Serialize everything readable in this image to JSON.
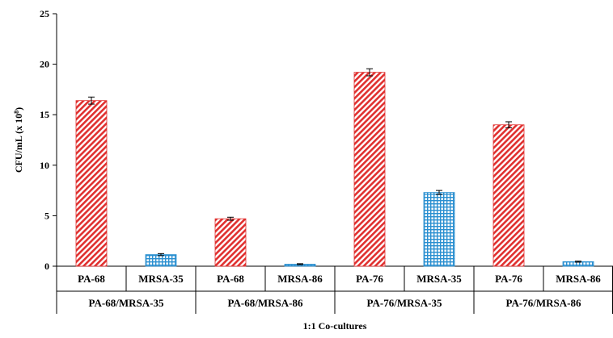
{
  "chart_data": {
    "type": "bar",
    "xlabel": "1:1 Co-cultures",
    "ylabel": "CFU/mL (x 10⁸)",
    "ylim": [
      0,
      25
    ],
    "yticks": [
      0,
      5,
      10,
      15,
      20,
      25
    ],
    "grid": false,
    "groups": [
      {
        "label": "PA-68/MRSA-35",
        "bars": [
          {
            "category": "PA-68",
            "value": 16.4,
            "error": 0.35,
            "series": "PA"
          },
          {
            "category": "MRSA-35",
            "value": 1.15,
            "error": 0.1,
            "series": "MRSA"
          }
        ]
      },
      {
        "label": "PA-68/MRSA-86",
        "bars": [
          {
            "category": "PA-68",
            "value": 4.7,
            "error": 0.15,
            "series": "PA"
          },
          {
            "category": "MRSA-86",
            "value": 0.2,
            "error": 0.05,
            "series": "MRSA"
          }
        ]
      },
      {
        "label": "PA-76/MRSA-35",
        "bars": [
          {
            "category": "PA-76",
            "value": 19.2,
            "error": 0.35,
            "series": "PA"
          },
          {
            "category": "MRSA-35",
            "value": 7.3,
            "error": 0.2,
            "series": "MRSA"
          }
        ]
      },
      {
        "label": "PA-76/MRSA-86",
        "bars": [
          {
            "category": "PA-76",
            "value": 14.0,
            "error": 0.3,
            "series": "PA"
          },
          {
            "category": "MRSA-86",
            "value": 0.45,
            "error": 0.05,
            "series": "MRSA"
          }
        ]
      }
    ],
    "series_styles": {
      "PA": {
        "pattern": "diagonal-hatch",
        "color": "#e0302f"
      },
      "MRSA": {
        "pattern": "grid-hatch",
        "color": "#2a8fd0"
      }
    }
  }
}
